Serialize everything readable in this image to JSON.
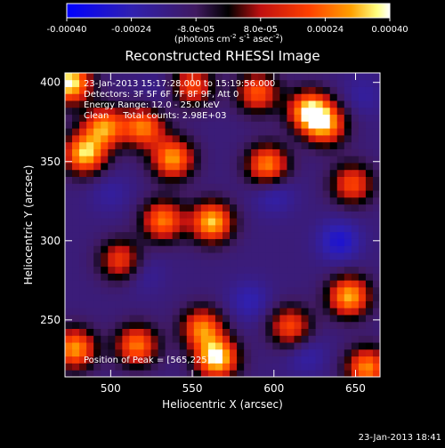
{
  "chart_data": {
    "type": "heatmap",
    "title": "Reconstructed RHESSI Image",
    "xlabel": "Heliocentric X (arcsec)",
    "ylabel": "Heliocentric Y (arcsec)",
    "xlim": [
      472,
      665
    ],
    "ylim": [
      214,
      406
    ],
    "x_ticks": [
      500,
      550,
      600,
      650
    ],
    "y_ticks": [
      250,
      300,
      350,
      400
    ],
    "colorbar": {
      "label_main": "(photons cm",
      "label_exp1": "-2",
      "label_mid": " s",
      "label_exp2": "-1",
      "label_end": " asec",
      "label_exp3": "-2",
      "label_close": ")",
      "range": [
        -0.0004,
        0.0004
      ],
      "tick_labels": [
        "-0.00040",
        "-0.00024",
        "-8.0e-05",
        "8.0e-05",
        "0.00024",
        "0.00040"
      ],
      "tick_values": [
        -0.0004,
        -0.00024,
        -8e-05,
        8e-05,
        0.00024,
        0.0004
      ],
      "colors": [
        "#0000ff",
        "#3020b0",
        "#401a60",
        "#000000",
        "#c01010",
        "#ff4000",
        "#ffa000",
        "#ffff80",
        "#ffffff"
      ]
    },
    "annotations": [
      "23-Jan-2013 15:17:28.000 to 15:19:56.000",
      "Detectors: 3F 5F 6F 7F 8F 9F, Att 0",
      "Energy Range: 12.0 - 25.0 keV",
      "Clean     Total counts: 2.98E+03"
    ],
    "peak_label": "Position of Peak = [565,225]",
    "hotspots": [
      {
        "x": 475,
        "y": 400,
        "value": 0.0004
      },
      {
        "x": 484,
        "y": 355,
        "value": 0.00034
      },
      {
        "x": 496,
        "y": 372,
        "value": 0.00028
      },
      {
        "x": 520,
        "y": 372,
        "value": 0.00026
      },
      {
        "x": 538,
        "y": 352,
        "value": 0.0003
      },
      {
        "x": 532,
        "y": 313,
        "value": 0.00026
      },
      {
        "x": 562,
        "y": 312,
        "value": 0.00034
      },
      {
        "x": 596,
        "y": 348,
        "value": 0.00028
      },
      {
        "x": 622,
        "y": 382,
        "value": 0.00036
      },
      {
        "x": 632,
        "y": 373,
        "value": 0.00024
      },
      {
        "x": 590,
        "y": 394,
        "value": 0.00022
      },
      {
        "x": 550,
        "y": 398,
        "value": 0.0002
      },
      {
        "x": 648,
        "y": 336,
        "value": 0.0002
      },
      {
        "x": 646,
        "y": 265,
        "value": 0.00032
      },
      {
        "x": 565,
        "y": 226,
        "value": 0.0004
      },
      {
        "x": 556,
        "y": 245,
        "value": 0.00026
      },
      {
        "x": 478,
        "y": 232,
        "value": 0.0003
      },
      {
        "x": 516,
        "y": 234,
        "value": 0.00026
      },
      {
        "x": 610,
        "y": 246,
        "value": 0.0002
      },
      {
        "x": 657,
        "y": 220,
        "value": 0.00028
      },
      {
        "x": 506,
        "y": 288,
        "value": 0.00018
      }
    ],
    "coldspots": [
      {
        "x": 640,
        "y": 300,
        "value": -0.0003
      },
      {
        "x": 600,
        "y": 330,
        "value": -0.00024
      },
      {
        "x": 520,
        "y": 280,
        "value": -0.0002
      },
      {
        "x": 585,
        "y": 262,
        "value": -0.00024
      },
      {
        "x": 500,
        "y": 330,
        "value": -0.0002
      },
      {
        "x": 620,
        "y": 228,
        "value": -0.00022
      },
      {
        "x": 655,
        "y": 392,
        "value": -0.0002
      },
      {
        "x": 530,
        "y": 394,
        "value": -0.00018
      }
    ],
    "grid": false
  },
  "timestamp": "23-Jan-2013 18:41"
}
